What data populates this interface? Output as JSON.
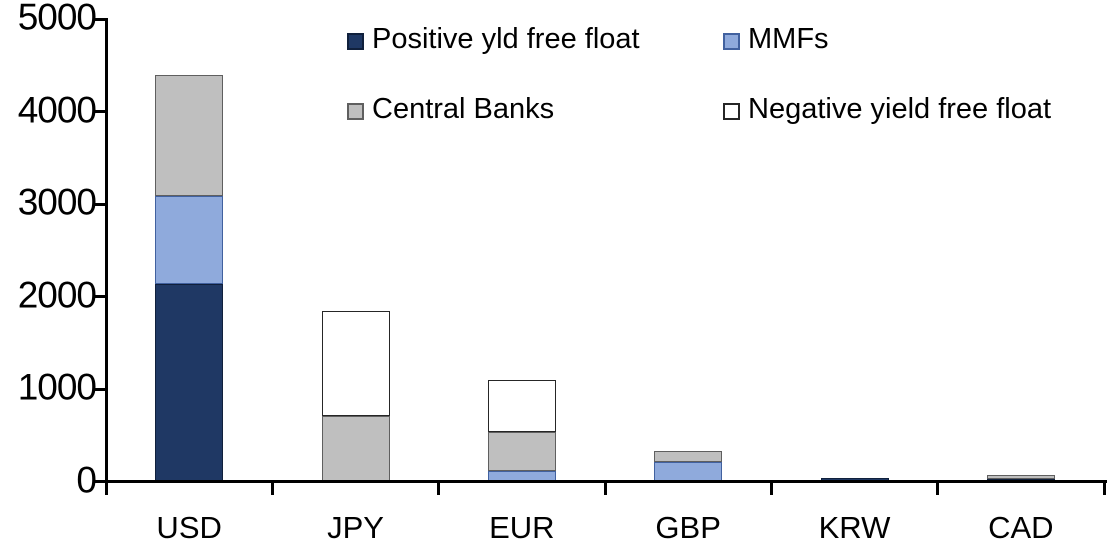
{
  "chart_data": {
    "type": "bar",
    "stacked": true,
    "title": "",
    "xlabel": "",
    "ylabel": "",
    "categories": [
      "USD",
      "JPY",
      "EUR",
      "GBP",
      "KRW",
      "CAD"
    ],
    "series": [
      {
        "name": "Positive yld free float",
        "color": "#1F3864",
        "border": "#10203C",
        "values": [
          2140,
          0,
          0,
          0,
          40,
          30
        ]
      },
      {
        "name": "MMFs",
        "color": "#8FAADC",
        "border": "#41619F",
        "values": [
          950,
          0,
          115,
          210,
          0,
          0
        ]
      },
      {
        "name": "Central Banks",
        "color": "#BFBFBF",
        "border": "#5F5F5F",
        "values": [
          1300,
          705,
          420,
          120,
          0,
          35
        ]
      },
      {
        "name": "Negative yield free float",
        "color": "#FFFFFF",
        "border": "#262626",
        "values": [
          0,
          1140,
          565,
          0,
          0,
          0
        ]
      }
    ],
    "ylim": [
      0,
      5000
    ],
    "yticks": [
      0,
      1000,
      2000,
      3000,
      4000,
      5000
    ],
    "grid": false,
    "legend_position": "top",
    "legend_rows": [
      [
        "Positive yld free float",
        "MMFs"
      ],
      [
        "Central Banks",
        "Negative yield free float"
      ]
    ]
  },
  "axis": {
    "color": "#000000"
  }
}
